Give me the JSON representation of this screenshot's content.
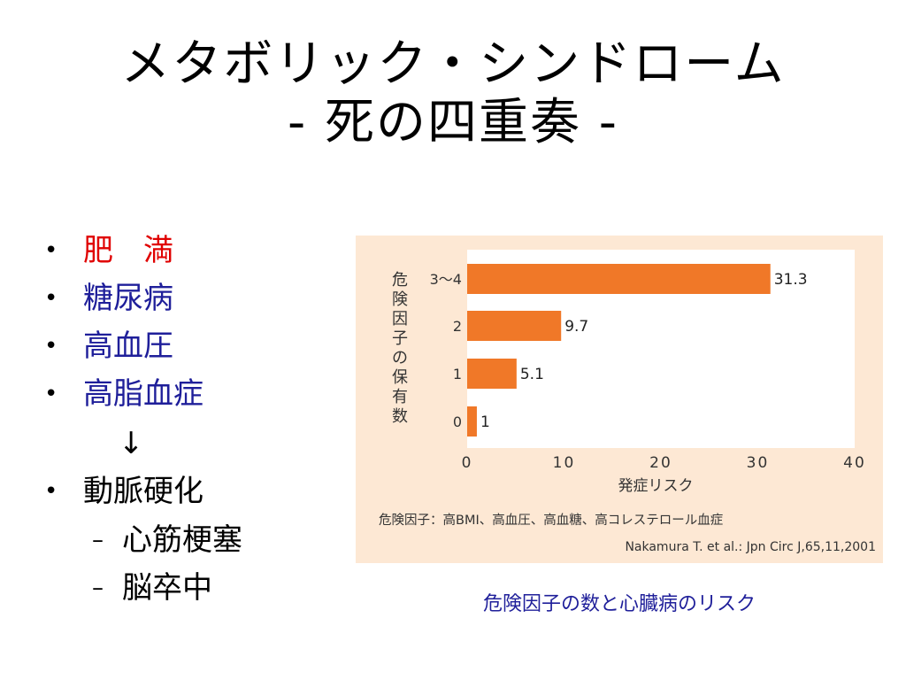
{
  "slide": {
    "title_line1": "メタボリック・シンドローム",
    "title_line2": "- 死の四重奏 -"
  },
  "bullets": [
    {
      "text": "肥　満",
      "color": "#e00000"
    },
    {
      "text": "糖尿病",
      "color": "#1f1f9a"
    },
    {
      "text": "高血圧",
      "color": "#1f1f9a"
    },
    {
      "text": "高脂血症",
      "color": "#1f1f9a"
    }
  ],
  "bullet_symbol": "•",
  "arrow": "↓",
  "result": {
    "text": "動脈硬化",
    "color": "#000000"
  },
  "sub_dash": "–",
  "sub_items": [
    "心筋梗塞",
    "脳卒中"
  ],
  "caption": "危険因子の数と心臓病のリスク",
  "chart_data": {
    "type": "bar",
    "orientation": "horizontal",
    "categories": [
      "3～4",
      "2",
      "1",
      "0"
    ],
    "values": [
      31.3,
      9.7,
      5.1,
      1
    ],
    "data_labels": [
      "31.3",
      "9.7",
      "5.1",
      "1"
    ],
    "xlabel": "発症リスク",
    "ylabel": "危険因子の保有数",
    "xlim": [
      0,
      40
    ],
    "xticks": [
      0,
      10,
      20,
      30,
      40
    ],
    "grid": false,
    "bar_color": "#f07828",
    "plot_background": "#ffffff",
    "panel_background": "#fde8d4",
    "footnote": "危険因子：高BMI、高血圧、高血糖、高コレステロール血症",
    "source": "Nakamura T. et al.: Jpn Circ J,65,11,2001"
  }
}
